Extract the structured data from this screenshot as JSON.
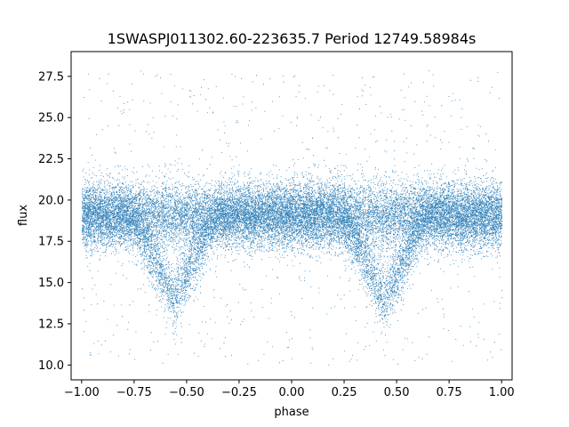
{
  "chart_data": {
    "type": "scatter",
    "title": "1SWASPJ011302.60-223635.7 Period 12749.58984s",
    "xlabel": "phase",
    "ylabel": "flux",
    "xlim": [
      -1.05,
      1.05
    ],
    "ylim": [
      9.1,
      29.0
    ],
    "xticks": [
      -1.0,
      -0.75,
      -0.5,
      -0.25,
      0.0,
      0.25,
      0.5,
      0.75,
      1.0
    ],
    "xtick_labels": [
      "−1.00",
      "−0.75",
      "−0.50",
      "−0.25",
      "0.00",
      "0.25",
      "0.50",
      "0.75",
      "1.00"
    ],
    "yticks": [
      10.0,
      12.5,
      15.0,
      17.5,
      20.0,
      22.5,
      25.0,
      27.5
    ],
    "ytick_labels": [
      "10.0",
      "12.5",
      "15.0",
      "17.5",
      "20.0",
      "22.5",
      "25.0",
      "27.5"
    ],
    "grid": false,
    "marker_color": "#1f77b4",
    "baseline_flux": 19.1,
    "eclipse_min_flux": 14.0,
    "eclipse_centers_phase": [
      -0.56,
      0.44
    ],
    "eclipse_halfwidth_phase": 0.2,
    "phase_range": [
      -1.0,
      1.0
    ]
  }
}
